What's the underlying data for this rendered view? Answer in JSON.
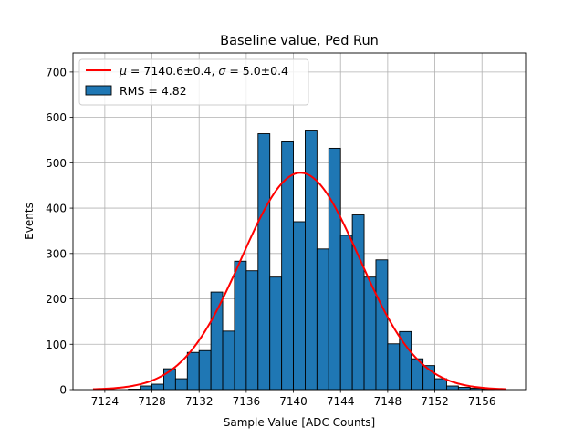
{
  "chart_data": {
    "type": "bar",
    "title": "Baseline value, Ped Run",
    "xlabel": "Sample Value [ADC Counts]",
    "ylabel": "Events",
    "xlim": [
      7121.3,
      7159.7
    ],
    "ylim": [
      0,
      742
    ],
    "x_ticks": [
      7124,
      7128,
      7132,
      7136,
      7140,
      7144,
      7148,
      7152,
      7156
    ],
    "y_ticks": [
      0,
      100,
      200,
      300,
      400,
      500,
      600,
      700
    ],
    "grid": true,
    "legend_position": "top-left",
    "bin_width": 1,
    "histogram": {
      "name": "RMS = 4.82",
      "color": "#1f77b4",
      "edgecolor": "#000000",
      "bin_left_edges": [
        7124,
        7125,
        7126,
        7127,
        7128,
        7129,
        7130,
        7131,
        7132,
        7133,
        7134,
        7135,
        7136,
        7137,
        7138,
        7139,
        7140,
        7141,
        7142,
        7143,
        7144,
        7145,
        7146,
        7147,
        7148,
        7149,
        7150,
        7151,
        7152,
        7153,
        7154,
        7155,
        7156
      ],
      "counts": [
        0,
        0,
        1,
        8,
        12,
        46,
        24,
        82,
        86,
        215,
        129,
        283,
        262,
        564,
        248,
        546,
        370,
        570,
        310,
        532,
        340,
        385,
        248,
        286,
        101,
        128,
        68,
        53,
        24,
        8,
        5,
        3,
        1
      ]
    },
    "fit": {
      "name": "$\\mu = 7140.6 \\pm 0.4$, $\\sigma = 5.0 \\pm 0.4$",
      "legend_label_mu_prefix": "μ",
      "legend_label_mu_value": " = 7140.6±0.4, ",
      "legend_label_sigma_prefix": "σ",
      "legend_label_sigma_value": " = 5.0±0.4",
      "type": "gaussian",
      "mu": 7140.6,
      "sigma": 5.0,
      "amplitude": 478,
      "x_range": [
        7123,
        7158
      ],
      "color": "#ff0000"
    }
  }
}
